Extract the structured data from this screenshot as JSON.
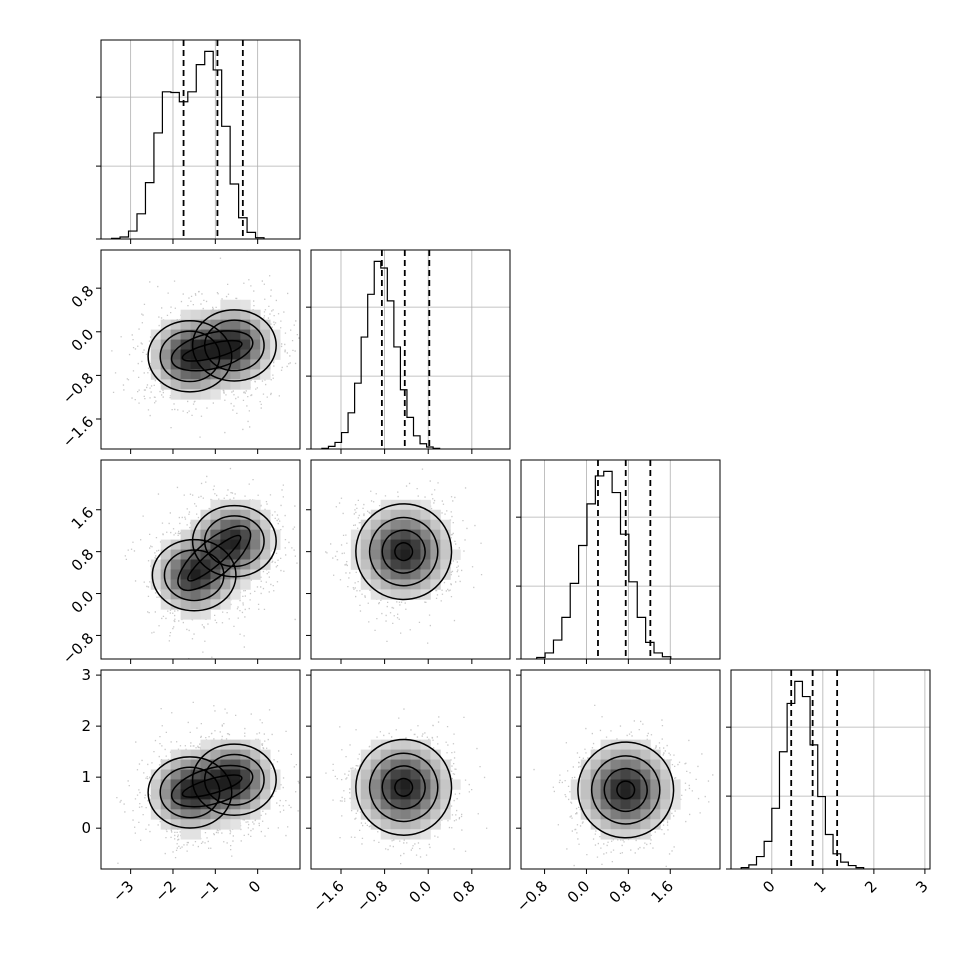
{
  "chart_data": {
    "type": "corner",
    "description_of_layout": "4x4 lower-triangular corner plot: 1D histograms on diagonal, 2D density + contour plots below diagonal",
    "params": [
      {
        "id": "p0",
        "range": [
          -3.7,
          1.0
        ],
        "ticks": [
          -3,
          -2,
          -1,
          0
        ],
        "tick_labels": [
          "−3",
          "−2",
          "−1",
          "0"
        ],
        "quantiles": [
          -1.75,
          -0.95,
          -0.35
        ],
        "hist": {
          "bin_start": -3.45,
          "bin_width": 0.2,
          "counts": [
            1,
            3,
            12,
            38,
            85,
            160,
            222,
            221,
            207,
            222,
            263,
            283,
            255,
            170,
            83,
            32,
            10,
            2
          ]
        }
      },
      {
        "id": "p1",
        "range": [
          -2.15,
          1.5
        ],
        "ticks": [
          -1.6,
          -0.8,
          0.0,
          0.8
        ],
        "tick_labels": [
          "−1.6",
          "−0.8",
          "0.0",
          "0.8"
        ],
        "quantiles": [
          -0.85,
          -0.43,
          0.02
        ],
        "hist": {
          "bin_start": -1.95,
          "bin_width": 0.12,
          "counts": [
            1,
            4,
            10,
            25,
            55,
            100,
            170,
            235,
            285,
            275,
            225,
            155,
            90,
            48,
            20,
            8,
            3,
            1
          ]
        }
      },
      {
        "id": "p2",
        "range": [
          -1.25,
          2.55
        ],
        "ticks": [
          -0.8,
          0.0,
          0.8,
          1.6
        ],
        "tick_labels": [
          "−0.8",
          "0.0",
          "0.8",
          "1.6"
        ],
        "quantiles": [
          0.22,
          0.75,
          1.22
        ],
        "hist": {
          "bin_start": -0.95,
          "bin_width": 0.16,
          "counts": [
            2,
            8,
            25,
            55,
            100,
            150,
            205,
            242,
            248,
            220,
            165,
            102,
            55,
            22,
            8,
            3
          ]
        }
      },
      {
        "id": "p3",
        "range": [
          -0.8,
          3.1
        ],
        "ticks": [
          0,
          1,
          2,
          3
        ],
        "tick_labels": [
          "0",
          "1",
          "2",
          "3"
        ],
        "quantiles": [
          0.38,
          0.8,
          1.28
        ],
        "hist": {
          "bin_start": -0.6,
          "bin_width": 0.15,
          "counts": [
            2,
            6,
            18,
            40,
            88,
            170,
            240,
            272,
            250,
            180,
            105,
            50,
            22,
            10,
            5,
            2
          ]
        }
      }
    ],
    "pairs": [
      {
        "row": 1,
        "col": 0,
        "modes": [
          {
            "x": -1.6,
            "y": -0.45
          },
          {
            "x": -0.55,
            "y": -0.25
          }
        ]
      },
      {
        "row": 2,
        "col": 0,
        "modes": [
          {
            "x": -1.5,
            "y": 0.35
          },
          {
            "x": -0.55,
            "y": 1.0
          }
        ]
      },
      {
        "row": 2,
        "col": 1,
        "modes": [
          {
            "x": -0.45,
            "y": 0.8
          }
        ]
      },
      {
        "row": 3,
        "col": 0,
        "modes": [
          {
            "x": -1.6,
            "y": 0.7
          },
          {
            "x": -0.55,
            "y": 0.95
          }
        ]
      },
      {
        "row": 3,
        "col": 1,
        "modes": [
          {
            "x": -0.45,
            "y": 0.8
          }
        ]
      },
      {
        "row": 3,
        "col": 2,
        "modes": [
          {
            "x": 0.75,
            "y": 0.75
          }
        ]
      }
    ]
  }
}
